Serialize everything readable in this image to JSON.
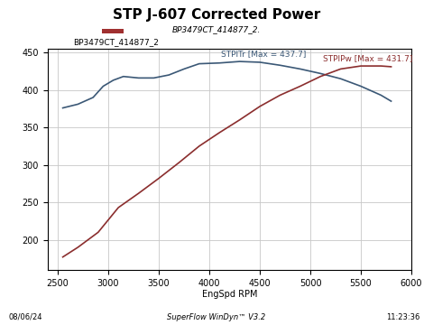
{
  "chart_data": {
    "type": "line",
    "title": "STP J-607 Corrected Power",
    "subtitle": "BP3479CT_414877_2.",
    "header_label": "BP3479CT_414877_2",
    "x_label": "EngSpd RPM",
    "footer": "SuperFlow WinDyn™ V3.2",
    "date": "08/06/24",
    "time": "11:23:36",
    "annotations": [
      "STPITr [Max = 437.7]",
      "STPIPw [Max = 431.7]"
    ],
    "series": [
      {
        "name": "STPITr",
        "color": "#3b5876",
        "x": [
          2550,
          2700,
          2850,
          2950,
          3050,
          3150,
          3300,
          3450,
          3600,
          3750,
          3900,
          4100,
          4300,
          4500,
          4700,
          4900,
          5100,
          5300,
          5500,
          5700,
          5800
        ],
        "values": [
          376,
          381,
          390,
          405,
          413,
          418,
          416,
          416,
          420,
          428,
          435,
          436,
          438,
          437,
          433,
          428,
          422,
          415,
          405,
          393,
          385
        ]
      },
      {
        "name": "STPIPw",
        "color": "#8b2e2e",
        "x": [
          2550,
          2700,
          2900,
          3100,
          3300,
          3500,
          3700,
          3900,
          4100,
          4300,
          4500,
          4700,
          4900,
          5100,
          5300,
          5500,
          5700,
          5800
        ],
        "values": [
          177,
          190,
          210,
          243,
          262,
          282,
          303,
          325,
          343,
          360,
          378,
          393,
          405,
          418,
          428,
          432,
          432,
          431
        ]
      }
    ],
    "xlim": [
      2400,
      6000
    ],
    "xticks": [
      2500,
      3000,
      3500,
      4000,
      4500,
      5000,
      5500,
      6000
    ],
    "ylim": [
      160,
      455
    ],
    "yticks": [
      200,
      250,
      300,
      350,
      400,
      450
    ],
    "grid": true
  }
}
